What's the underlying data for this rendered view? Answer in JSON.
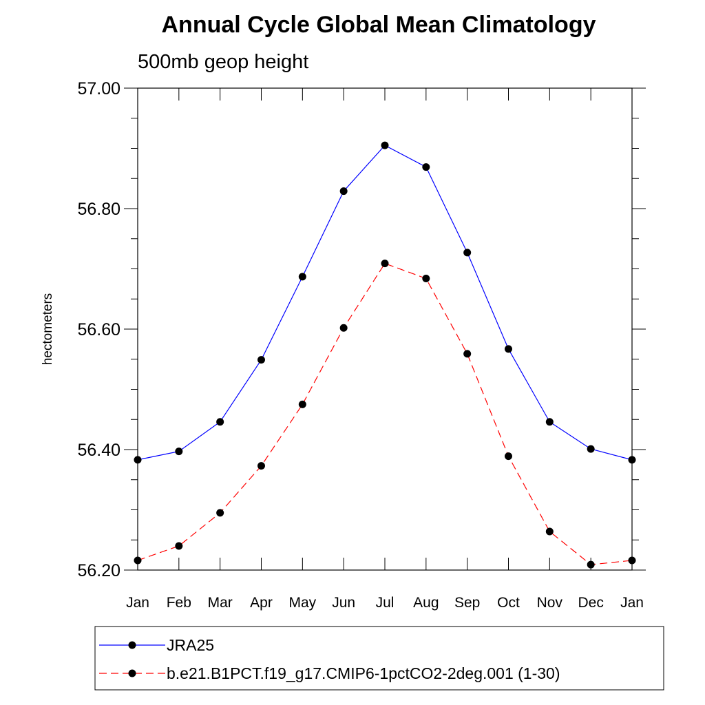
{
  "chart_data": {
    "type": "line",
    "title": "Annual Cycle Global Mean Climatology",
    "subtitle": "500mb geop height",
    "ylabel": "hectometers",
    "xlabel": "",
    "categories": [
      "Jan",
      "Feb",
      "Mar",
      "Apr",
      "May",
      "Jun",
      "Jul",
      "Aug",
      "Sep",
      "Oct",
      "Nov",
      "Dec",
      "Jan"
    ],
    "ylim": [
      56.2,
      57.0
    ],
    "yticks": [
      "56.20",
      "56.40",
      "56.60",
      "56.80",
      "57.00"
    ],
    "ytick_values": [
      56.2,
      56.4,
      56.6,
      56.8,
      57.0
    ],
    "y_minor_step": 0.05,
    "series": [
      {
        "name": "JRA25",
        "color": "#0000ff",
        "dash": "solid",
        "values": [
          56.383,
          56.397,
          56.446,
          56.549,
          56.687,
          56.829,
          56.905,
          56.869,
          56.727,
          56.567,
          56.446,
          56.401,
          56.383
        ]
      },
      {
        "name": "b.e21.B1PCT.f19_g17.CMIP6-1pctCO2-2deg.001 (1-30)",
        "color": "#ff0000",
        "dash": "dashed",
        "values": [
          56.216,
          56.24,
          56.295,
          56.373,
          56.475,
          56.602,
          56.709,
          56.684,
          56.559,
          56.389,
          56.264,
          56.209,
          56.216
        ]
      }
    ],
    "legend_position": "bottom",
    "grid": false
  }
}
